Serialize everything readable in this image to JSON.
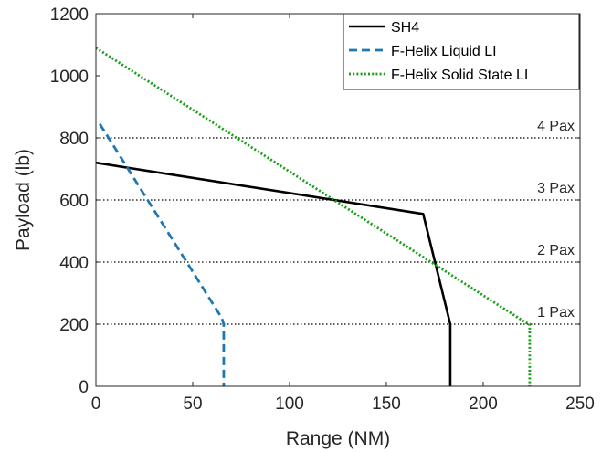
{
  "chart_data": {
    "type": "line",
    "xlabel": "Range (NM)",
    "ylabel": "Payload (lb)",
    "xlim": [
      0,
      250
    ],
    "ylim": [
      0,
      1200
    ],
    "xticks": [
      0,
      50,
      100,
      150,
      200,
      250
    ],
    "yticks": [
      0,
      200,
      400,
      600,
      800,
      1000,
      1200
    ],
    "grid": false,
    "legend_position": "top-right",
    "series": [
      {
        "name": "SH4",
        "color": "#000000",
        "style": "solid",
        "points": [
          [
            0,
            720
          ],
          [
            169,
            555
          ],
          [
            183,
            200
          ],
          [
            183,
            0
          ]
        ]
      },
      {
        "name": "F-Helix Liquid LI",
        "color": "#1f77b4",
        "style": "dashed",
        "points": [
          [
            2,
            845
          ],
          [
            65,
            220
          ],
          [
            66,
            200
          ],
          [
            66,
            0
          ]
        ]
      },
      {
        "name": "F-Helix Solid State LI",
        "color": "#1a9e1a",
        "style": "dotted",
        "points": [
          [
            0,
            1090
          ],
          [
            222,
            205
          ],
          [
            224,
            200
          ],
          [
            224,
            0
          ]
        ]
      }
    ],
    "reference_lines": [
      {
        "y": 800,
        "label": "4 Pax"
      },
      {
        "y": 600,
        "label": "3 Pax"
      },
      {
        "y": 400,
        "label": "2 Pax"
      },
      {
        "y": 200,
        "label": "1 Pax"
      }
    ]
  }
}
